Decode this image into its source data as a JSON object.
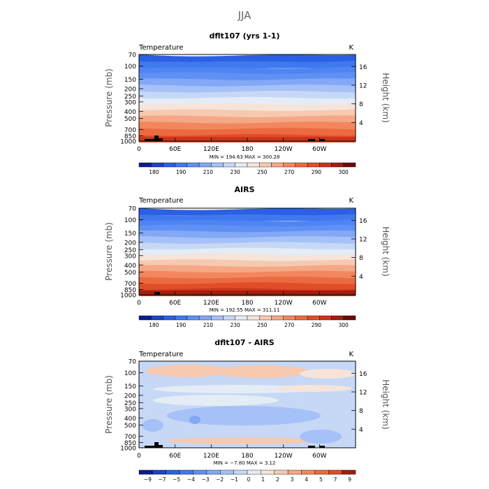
{
  "figure": {
    "title": "JJA"
  },
  "chart_data": [
    {
      "type": "heatmap",
      "title": "dflt107 (yrs 1-1)",
      "variable_label": "Temperature",
      "units_label": "K",
      "ylabel": "Pressure (mb)",
      "ylabel_right": "Height (km)",
      "x_ticks": [
        "0",
        "60E",
        "120E",
        "180",
        "120W",
        "60W"
      ],
      "y_ticks_left": [
        "70",
        "100",
        "150",
        "200",
        "250",
        "300",
        "400",
        "500",
        "700",
        "850",
        "1000"
      ],
      "y_ticks_right": [
        "16",
        "12",
        "8",
        "4"
      ],
      "min_max_text": "MIN = 194.63   MAX = 300.28",
      "min": 194.63,
      "max": 300.28,
      "colorbar_labels": [
        "180",
        "190",
        "210",
        "230",
        "250",
        "270",
        "290",
        "300"
      ],
      "colorbar_colors": [
        "#0a1f8c",
        "#1d43c8",
        "#2c5fe3",
        "#3f79f0",
        "#5f90f4",
        "#82a8f6",
        "#a5c1f7",
        "#c6d8f6",
        "#e4ecf5",
        "#f6e4d9",
        "#f6c9b0",
        "#f5a885",
        "#f2875e",
        "#ec6a3f",
        "#e04d28",
        "#c7361b",
        "#9f1f10",
        "#6b0c0a"
      ],
      "band_colors": [
        "#2c5fe3",
        "#3f79f0",
        "#4f84f2",
        "#5f90f4",
        "#82a8f6",
        "#a5c1f7",
        "#c6d8f6",
        "#e4ecf5",
        "#f6e4d9",
        "#f6c9b0",
        "#f5a885",
        "#f2875e",
        "#ec6a3f",
        "#e04d28"
      ]
    },
    {
      "type": "heatmap",
      "title": "AIRS",
      "variable_label": "Temperature",
      "units_label": "K",
      "ylabel": "Pressure (mb)",
      "ylabel_right": "Height (km)",
      "x_ticks": [
        "0",
        "60E",
        "120E",
        "180",
        "120W",
        "60W"
      ],
      "y_ticks_left": [
        "70",
        "100",
        "150",
        "200",
        "250",
        "300",
        "400",
        "500",
        "700",
        "850",
        "1000"
      ],
      "y_ticks_right": [
        "16",
        "12",
        "8",
        "4"
      ],
      "min_max_text": "MIN = 192.55   MAX = 311.11",
      "min": 192.55,
      "max": 311.11,
      "colorbar_labels": [
        "180",
        "190",
        "210",
        "230",
        "250",
        "270",
        "290",
        "300"
      ],
      "colorbar_colors": [
        "#0a1f8c",
        "#1d43c8",
        "#2c5fe3",
        "#3f79f0",
        "#5f90f4",
        "#82a8f6",
        "#a5c1f7",
        "#c6d8f6",
        "#e4ecf5",
        "#f6e4d9",
        "#f6c9b0",
        "#f5a885",
        "#f2875e",
        "#ec6a3f",
        "#e04d28",
        "#c7361b",
        "#9f1f10",
        "#6b0c0a"
      ],
      "band_colors": [
        "#2c5fe3",
        "#3f79f0",
        "#4f84f2",
        "#5f90f4",
        "#82a8f6",
        "#a5c1f7",
        "#c6d8f6",
        "#e4ecf5",
        "#f6e4d9",
        "#f6c9b0",
        "#f5a885",
        "#f2875e",
        "#ec6a3f",
        "#e04d28",
        "#c7361b"
      ]
    },
    {
      "type": "heatmap",
      "title": "dflt107 - AIRS",
      "variable_label": "Temperature",
      "units_label": "K",
      "ylabel": "Pressure (mb)",
      "ylabel_right": "Height (km)",
      "x_ticks": [
        "0",
        "60E",
        "120E",
        "180",
        "120W",
        "60W"
      ],
      "y_ticks_left": [
        "70",
        "100",
        "150",
        "200",
        "250",
        "300",
        "400",
        "500",
        "700",
        "850",
        "1000"
      ],
      "y_ticks_right": [
        "16",
        "12",
        "8",
        "4"
      ],
      "min_max_text": "MIN = −7.80   MAX =    3.12",
      "min": -7.8,
      "max": 3.12,
      "colorbar_labels": [
        "−9",
        "−7",
        "−5",
        "−4",
        "−3",
        "−2",
        "−1",
        "0",
        "1",
        "2",
        "3",
        "4",
        "5",
        "7",
        "9"
      ],
      "colorbar_colors": [
        "#0a1f8c",
        "#1d43c8",
        "#2c5fe3",
        "#3f79f0",
        "#5f90f4",
        "#82a8f6",
        "#a5c1f7",
        "#c6d8f6",
        "#e4ecf5",
        "#f6e4d9",
        "#f6c9b0",
        "#f5a885",
        "#f2875e",
        "#ec6a3f",
        "#e04d28",
        "#9f1f10"
      ],
      "diff_base_color": "#c6d8f6",
      "diff_cool_color": "#a5c1f7",
      "diff_warm_color": "#f6e4d9",
      "diff_warm2_color": "#f6c9b0"
    }
  ]
}
